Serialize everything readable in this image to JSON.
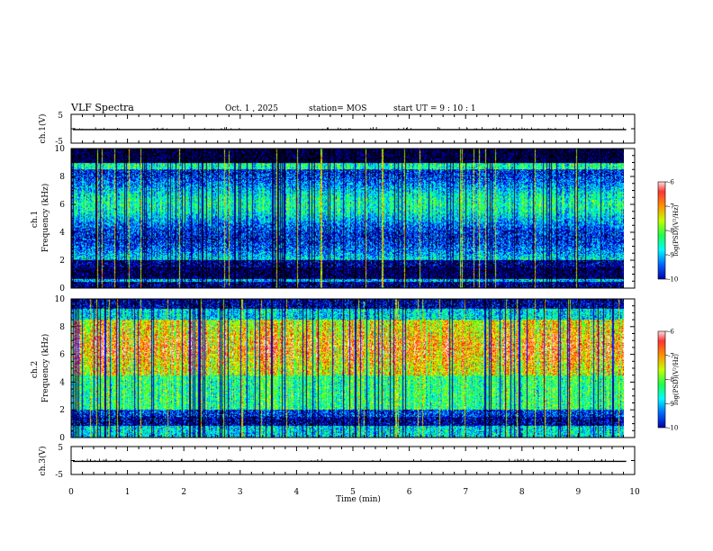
{
  "header": {
    "title": "VLF Spectra",
    "date": "Oct. 1 , 2025",
    "station": "station= MOS",
    "start_ut": "start  UT =   9 : 10 : 1"
  },
  "colors": {
    "colormap": [
      "#000000",
      "#00007f",
      "#0000ff",
      "#00a0ff",
      "#00ffff",
      "#00ff66",
      "#66ff00",
      "#ffff00",
      "#ff8800",
      "#ff0000",
      "#ffd8d8",
      "#ffffff"
    ],
    "trace": "#000000"
  },
  "chart_data": [
    {
      "id": "ch1v",
      "type": "line",
      "ylabel": "ch.1(V)",
      "ylim": [
        -5,
        5
      ],
      "yticks": [
        "5",
        "-5"
      ],
      "series": [
        {
          "values": [
            -0.3
          ]
        }
      ]
    },
    {
      "id": "ch1spec",
      "type": "heatmap",
      "ylabel": "ch.1\nFrequency (kHz)",
      "ylim": [
        0,
        10
      ],
      "yticks": [
        "0",
        "2",
        "4",
        "6",
        "8",
        "10"
      ],
      "colorbar": {
        "label": "log(PSD)(V²/Hz)",
        "range": [
          -10,
          -6
        ],
        "ticks": [
          "-6",
          "-7",
          "-8",
          "-9",
          "-10"
        ]
      }
    },
    {
      "id": "ch2spec",
      "type": "heatmap",
      "ylabel": "ch.2\nFrequency (kHz)",
      "ylim": [
        0,
        10
      ],
      "yticks": [
        "0",
        "2",
        "4",
        "6",
        "8",
        "10"
      ],
      "colorbar": {
        "label": "log(PSD)(V²/Hz)",
        "range": [
          -10,
          -6
        ],
        "ticks": [
          "-6",
          "-7",
          "-8",
          "-9",
          "-10"
        ]
      }
    },
    {
      "id": "ch3v",
      "type": "line",
      "ylabel": "ch.3(V)",
      "ylim": [
        -5,
        5
      ],
      "yticks": [
        "5",
        "-5"
      ],
      "series": [
        {
          "values": [
            -0.3
          ]
        }
      ]
    }
  ],
  "xaxis": {
    "label": "Time  (min)",
    "xlim": [
      0,
      10
    ],
    "ticks": [
      "0",
      "1",
      "2",
      "3",
      "4",
      "5",
      "6",
      "7",
      "8",
      "9",
      "10"
    ],
    "data_end": 9.85
  }
}
